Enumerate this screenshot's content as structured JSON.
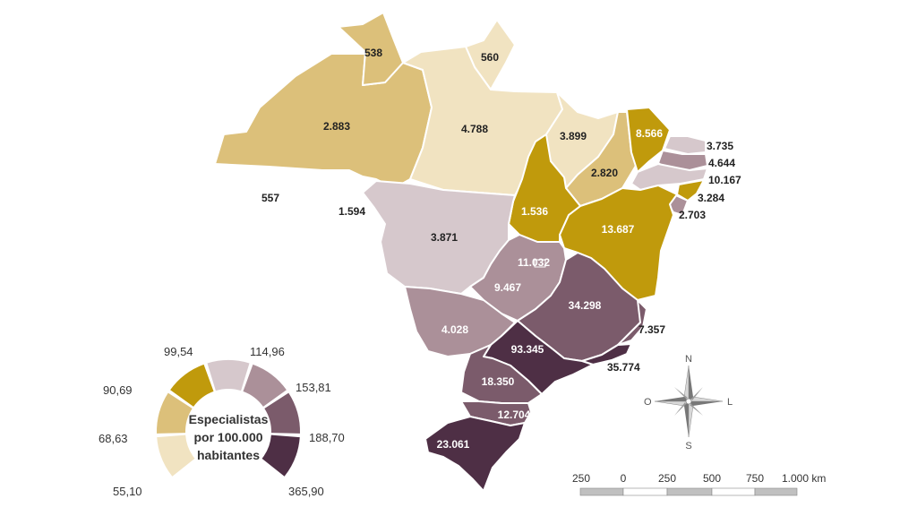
{
  "colors": {
    "c1": "#f1e3c1",
    "c2": "#dcc07a",
    "c3": "#c09a0c",
    "c4": "#d6c8cc",
    "c5": "#ab9099",
    "c6": "#7b5b6b",
    "c7": "#4e2f45"
  },
  "states": [
    {
      "id": "RR",
      "value": "538",
      "cls": "c2",
      "label_color": "#222"
    },
    {
      "id": "AP",
      "value": "560",
      "cls": "c1",
      "label_color": "#222"
    },
    {
      "id": "AM",
      "value": "2.883",
      "cls": "c2",
      "label_color": "#222"
    },
    {
      "id": "PA",
      "value": "4.788",
      "cls": "c1",
      "label_color": "#222"
    },
    {
      "id": "MA",
      "value": "3.899",
      "cls": "c1",
      "label_color": "#222"
    },
    {
      "id": "CE",
      "value": "8.566",
      "cls": "c3",
      "label_color": "#ffffff"
    },
    {
      "id": "PI",
      "value": "2.820",
      "cls": "c2",
      "label_color": "#222"
    },
    {
      "id": "AC",
      "value": "557",
      "cls": "c1",
      "label_color": "#222"
    },
    {
      "id": "RO",
      "value": "1.594",
      "cls": "c2",
      "label_color": "#222"
    },
    {
      "id": "TO",
      "value": "1.536",
      "cls": "c3",
      "label_color": "#ffffff"
    },
    {
      "id": "BA",
      "value": "13.687",
      "cls": "c3",
      "label_color": "#ffffff"
    },
    {
      "id": "MT",
      "value": "3.871",
      "cls": "c4",
      "label_color": "#222"
    },
    {
      "id": "DF",
      "value": "11.032",
      "cls": "c5",
      "label_color": "#ffffff"
    },
    {
      "id": "GO",
      "value": "9.467",
      "cls": "c5",
      "label_color": "#ffffff"
    },
    {
      "id": "MG",
      "value": "34.298",
      "cls": "c6",
      "label_color": "#ffffff"
    },
    {
      "id": "MS",
      "value": "4.028",
      "cls": "c5",
      "label_color": "#ffffff"
    },
    {
      "id": "SP",
      "value": "93.345",
      "cls": "c7",
      "label_color": "#ffffff"
    },
    {
      "id": "PR",
      "value": "18.350",
      "cls": "c6",
      "label_color": "#ffffff"
    },
    {
      "id": "SC",
      "value": "12.704",
      "cls": "c6",
      "label_color": "#ffffff"
    },
    {
      "id": "RS",
      "value": "23.061",
      "cls": "c7",
      "label_color": "#ffffff"
    },
    {
      "id": "RN",
      "value": "3.735",
      "cls": "c4",
      "label_color": "#222"
    },
    {
      "id": "PB",
      "value": "4.644",
      "cls": "c5",
      "label_color": "#222"
    },
    {
      "id": "PE",
      "value": "10.167",
      "cls": "c4",
      "label_color": "#222"
    },
    {
      "id": "AL",
      "value": "3.284",
      "cls": "c3",
      "label_color": "#222"
    },
    {
      "id": "SE",
      "value": "2.703",
      "cls": "c5",
      "label_color": "#222"
    },
    {
      "id": "ES",
      "value": "7.357",
      "cls": "c6",
      "label_color": "#222"
    },
    {
      "id": "RJ",
      "value": "35.774",
      "cls": "c7",
      "label_color": "#222"
    }
  ],
  "legend": {
    "title_line1": "Especialistas",
    "title_line2": "por 100.000",
    "title_line3": "habitantes",
    "breaks": [
      "55,10",
      "68,63",
      "90,69",
      "99,54",
      "114,96",
      "153,81",
      "188,70",
      "365,90"
    ]
  },
  "compass": {
    "n": "N",
    "s": "S",
    "l": "L",
    "o": "O"
  },
  "scale": {
    "ticks": [
      "250",
      "0",
      "250",
      "500",
      "750",
      "1.000 km"
    ]
  }
}
